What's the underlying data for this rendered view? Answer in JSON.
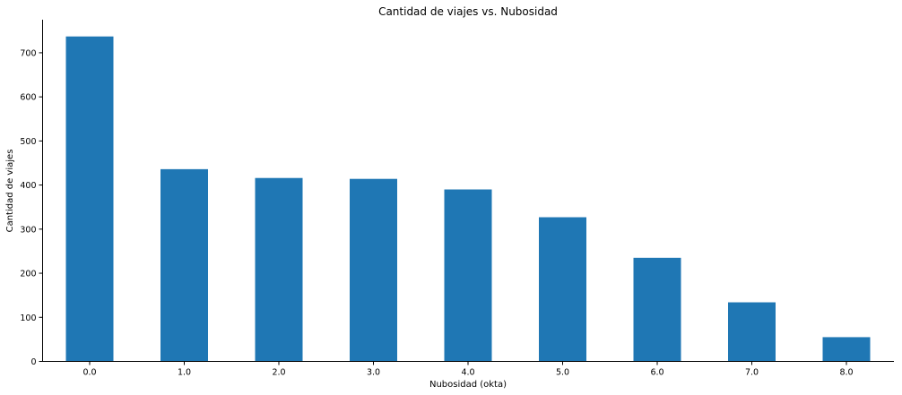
{
  "chart_data": {
    "type": "bar",
    "title": "Cantidad de viajes vs. Nubosidad",
    "xlabel": "Nubosidad (okta)",
    "ylabel": "Cantidad de viajes",
    "categories": [
      "0.0",
      "1.0",
      "2.0",
      "3.0",
      "4.0",
      "5.0",
      "6.0",
      "7.0",
      "8.0"
    ],
    "values": [
      737,
      436,
      416,
      414,
      390,
      327,
      235,
      134,
      55
    ],
    "ylim": [
      0,
      775
    ],
    "yticks": [
      0,
      100,
      200,
      300,
      400,
      500,
      600,
      700
    ],
    "grid": false,
    "bar_color": "#1f77b4"
  }
}
